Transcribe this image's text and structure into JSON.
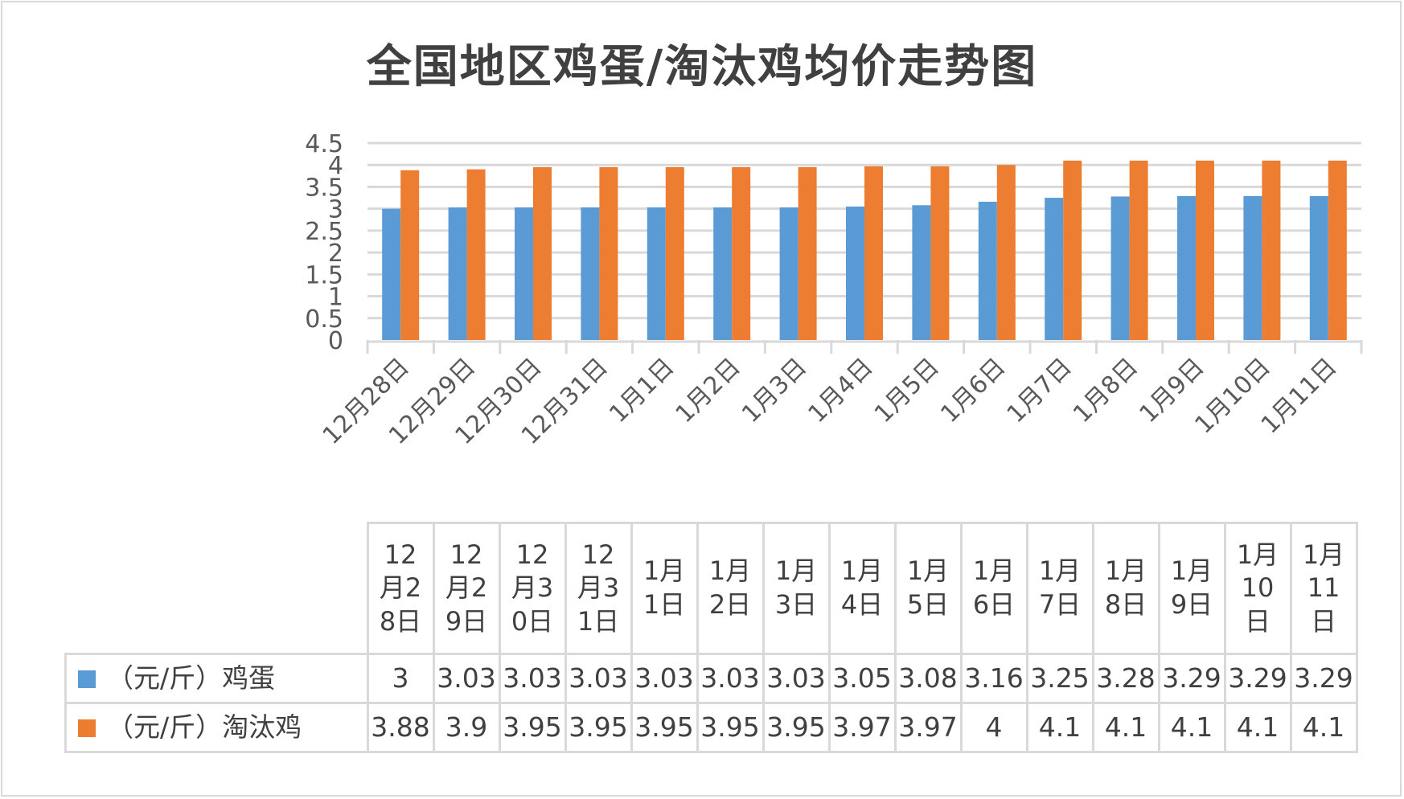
{
  "chart_data": {
    "type": "bar",
    "title": "全国地区鸡蛋/淘汰鸡均价走势图",
    "categories": [
      "12月28日",
      "12月29日",
      "12月30日",
      "12月31日",
      "1月1日",
      "1月2日",
      "1月3日",
      "1月4日",
      "1月5日",
      "1月6日",
      "1月7日",
      "1月8日",
      "1月9日",
      "1月10日",
      "1月11日"
    ],
    "table_headers": [
      "12\n月2\n8日",
      "12\n月2\n9日",
      "12\n月3\n0日",
      "12\n月3\n1日",
      "1月\n1日",
      "1月\n2日",
      "1月\n3日",
      "1月\n4日",
      "1月\n5日",
      "1月\n6日",
      "1月\n7日",
      "1月\n8日",
      "1月\n9日",
      "1月\n10\n日",
      "1月\n11\n日"
    ],
    "series": [
      {
        "name": "（元/斤）鸡蛋",
        "color": "#5b9bd5",
        "values": [
          3,
          3.03,
          3.03,
          3.03,
          3.03,
          3.03,
          3.03,
          3.05,
          3.08,
          3.16,
          3.25,
          3.28,
          3.29,
          3.29,
          3.29
        ]
      },
      {
        "name": "（元/斤）淘汰鸡",
        "color": "#ed7d31",
        "values": [
          3.88,
          3.9,
          3.95,
          3.95,
          3.95,
          3.95,
          3.95,
          3.97,
          3.97,
          4,
          4.1,
          4.1,
          4.1,
          4.1,
          4.1
        ]
      }
    ],
    "yticks": [
      "0",
      "0.5",
      "1",
      "1.5",
      "2",
      "2.5",
      "3",
      "3.5",
      "4",
      "4.5"
    ],
    "ylim": [
      0,
      4.5
    ],
    "grid": true,
    "legend": "data-table"
  }
}
